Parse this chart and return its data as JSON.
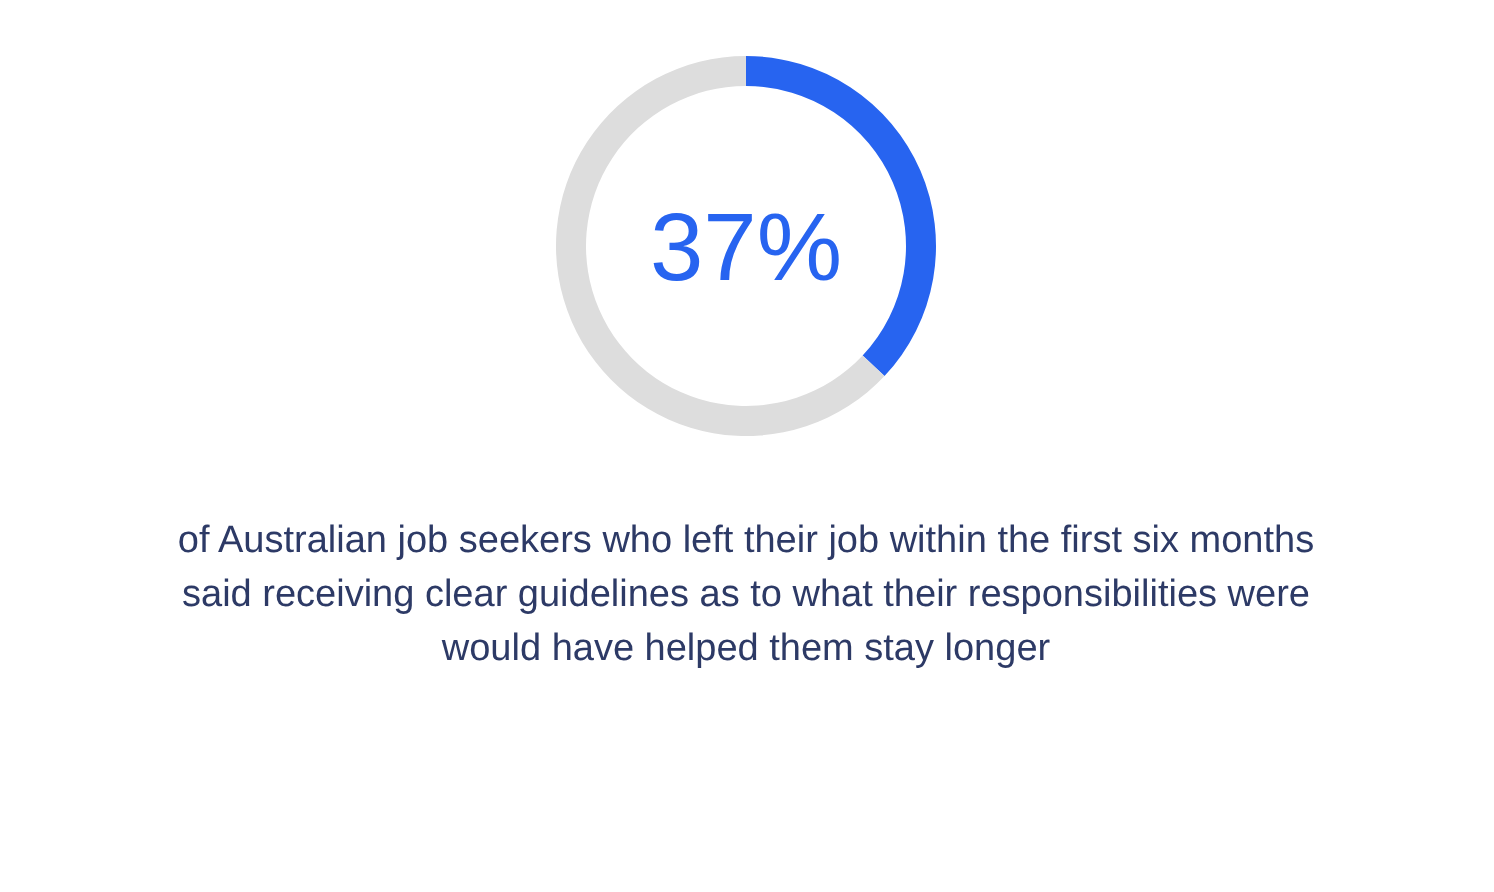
{
  "chart_data": {
    "type": "donut",
    "categories": [
      null,
      null
    ],
    "values": [
      37,
      63
    ],
    "colors": [
      "#2764f0",
      "#dddddd"
    ],
    "title": "37%",
    "annotations": [
      "of Australian job seekers who left their job within the first six months said receiving clear guidelines as to what their responsibilities were would have helped them stay longer"
    ]
  }
}
